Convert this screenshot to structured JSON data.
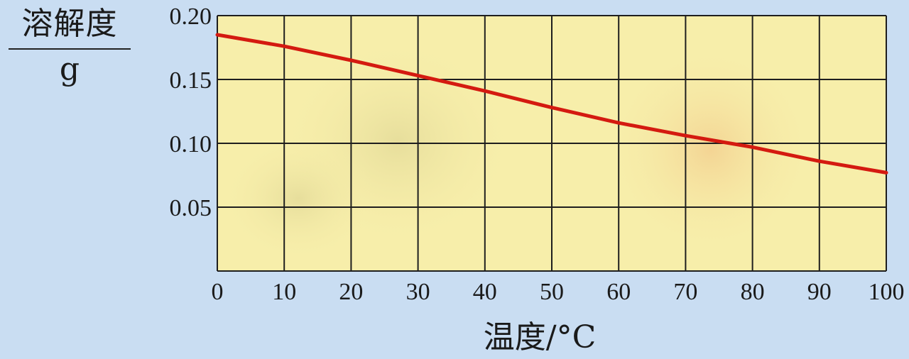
{
  "chart_data": {
    "type": "line",
    "xlabel": "温度/°C",
    "ylabel": "溶解度",
    "ylabel_unit": "g",
    "xlim": [
      0,
      100
    ],
    "ylim": [
      0,
      0.2
    ],
    "xticks": [
      "0",
      "10",
      "20",
      "30",
      "40",
      "50",
      "60",
      "70",
      "80",
      "90",
      "100"
    ],
    "yticks": [
      "0.05",
      "0.10",
      "0.15",
      "0.20"
    ],
    "grid": true,
    "series": [
      {
        "x": [
          0,
          10,
          20,
          30,
          40,
          50,
          60,
          70,
          80,
          90,
          100
        ],
        "y": [
          0.185,
          0.176,
          0.165,
          0.153,
          0.141,
          0.128,
          0.116,
          0.106,
          0.097,
          0.086,
          0.077
        ]
      }
    ]
  },
  "colors": {
    "line": "#d41a10",
    "grid": "#1e1e1e",
    "plot_background": "#f7eeaa",
    "page_background": "#c9ddf2"
  }
}
